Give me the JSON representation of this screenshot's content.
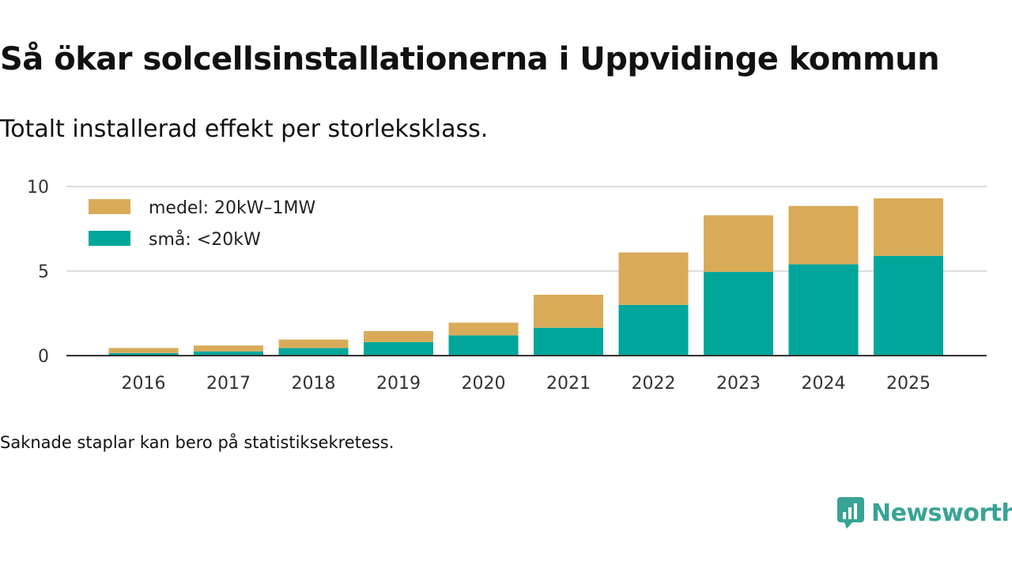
{
  "title": "Så ökar solcellsinstallationerna i Uppvidinge kommun",
  "subtitle": "Totalt installerad effekt per storleksklass.",
  "note": "Saknade staplar kan bero på statistiksekretess.",
  "brand": "Newsworthy",
  "colors": {
    "medium": "#d9ab59",
    "small": "#00a69a",
    "brand": "#3aa396"
  },
  "chart_data": {
    "type": "bar",
    "stacked": true,
    "categories": [
      "2016",
      "2017",
      "2018",
      "2019",
      "2020",
      "2021",
      "2022",
      "2023",
      "2024",
      "2025"
    ],
    "series": [
      {
        "name": "små: <20kW",
        "values": [
          0.15,
          0.25,
          0.45,
          0.8,
          1.2,
          1.65,
          3.0,
          4.95,
          5.4,
          5.9
        ]
      },
      {
        "name": "medel: 20kW–1MW",
        "values": [
          0.3,
          0.35,
          0.5,
          0.65,
          0.75,
          1.95,
          3.1,
          3.35,
          3.45,
          3.4
        ]
      }
    ],
    "legend": [
      {
        "name": "medel: 20kW–1MW",
        "color": "#d9ab59"
      },
      {
        "name": "små: <20kW",
        "color": "#00a69a"
      }
    ],
    "yticks": [
      "0",
      "5",
      "10"
    ],
    "ylim": [
      0,
      10
    ],
    "legend_position": "top-left",
    "grid": true,
    "xlabel": "",
    "ylabel": ""
  }
}
